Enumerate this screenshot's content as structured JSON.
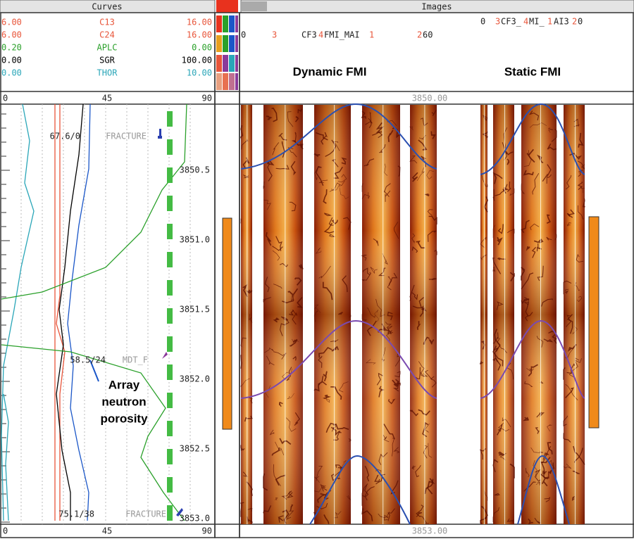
{
  "header": {
    "curves": "Curves",
    "images": "Images"
  },
  "curves": [
    {
      "left": "6.00",
      "name": "C13",
      "right": "16.00"
    },
    {
      "left": "6.00",
      "name": "C24",
      "right": "16.00"
    },
    {
      "left": "0.20",
      "name": "APLC",
      "right": "0.00"
    },
    {
      "left": "0.00",
      "name": "SGR",
      "right": "100.00"
    },
    {
      "left": "0.00",
      "name": "THOR",
      "right": "10.00"
    }
  ],
  "scale_top": [
    "0",
    "45",
    "90"
  ],
  "scale_bottom": [
    "0",
    "45",
    "90"
  ],
  "image_header": {
    "dynamic": [
      "0",
      "3",
      "CF3",
      "4",
      "FMI_MAI",
      "1",
      "2",
      "60"
    ],
    "static": [
      "0",
      "3",
      "CF3_",
      "4",
      "MI_",
      "1",
      "AI3",
      "2",
      "0"
    ]
  },
  "image_titles": [
    "Dynamic FMI",
    "Static FMI"
  ],
  "depth_top": "3850.00",
  "depth_bottom": "3853.00",
  "depth_labels": [
    "3850.5",
    "3851.0",
    "3851.5",
    "3852.0",
    "3852.5",
    "3853.0"
  ],
  "annotations": [
    "67.6/0",
    "FRACTURE",
    "58.5/24",
    "MDT_F",
    "75.1/38",
    "FRACTURE"
  ],
  "callout": [
    "Array",
    "neutron",
    "porosity"
  ]
}
